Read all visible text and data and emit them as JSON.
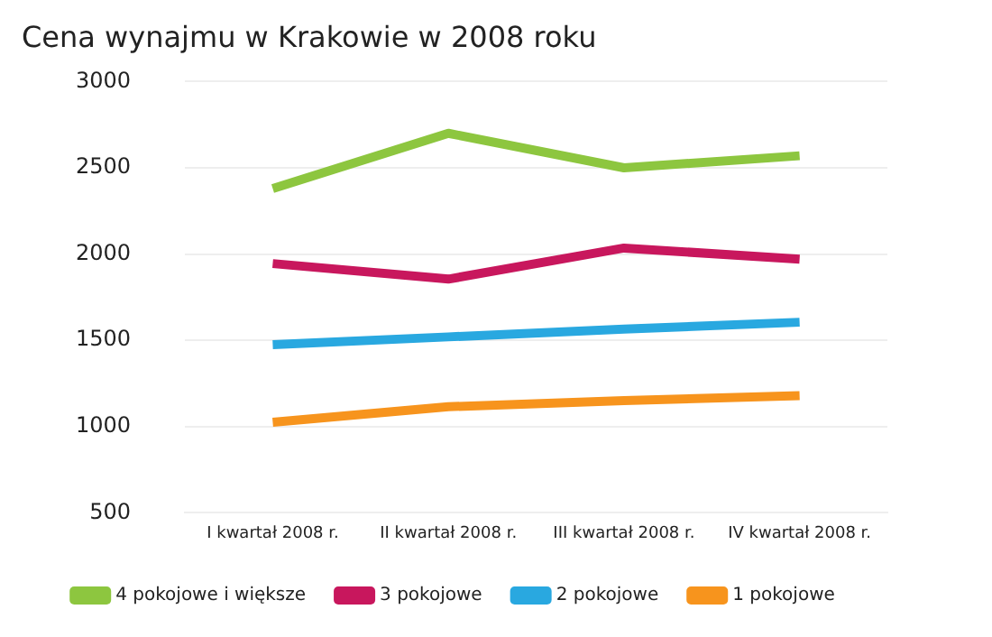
{
  "chart_data": {
    "type": "line",
    "title": "Cena wynajmu w Krakowie w 2008 roku",
    "categories": [
      "I kwartał 2008 r.",
      "II kwartał 2008 r.",
      "III kwartał 2008 r.",
      "IV kwartał 2008 r."
    ],
    "series": [
      {
        "name": "4 pokojowe i większe",
        "color": "#8dc63f",
        "values": [
          2380,
          2700,
          2500,
          2570
        ]
      },
      {
        "name": "3 pokojowe",
        "color": "#c8175d",
        "values": [
          1945,
          1855,
          2035,
          1970
        ]
      },
      {
        "name": "2 pokojowe",
        "color": "#29a8e0",
        "values": [
          1475,
          1520,
          1565,
          1605
        ]
      },
      {
        "name": "1 pokojowe",
        "color": "#f7941d",
        "values": [
          1025,
          1115,
          1150,
          1180
        ]
      }
    ],
    "ylim": [
      500,
      3000
    ],
    "yticks": [
      500,
      1000,
      1500,
      2000,
      2500,
      3000
    ],
    "grid": "y",
    "legend": "bottom",
    "marker": "none",
    "line_style": "solid"
  }
}
